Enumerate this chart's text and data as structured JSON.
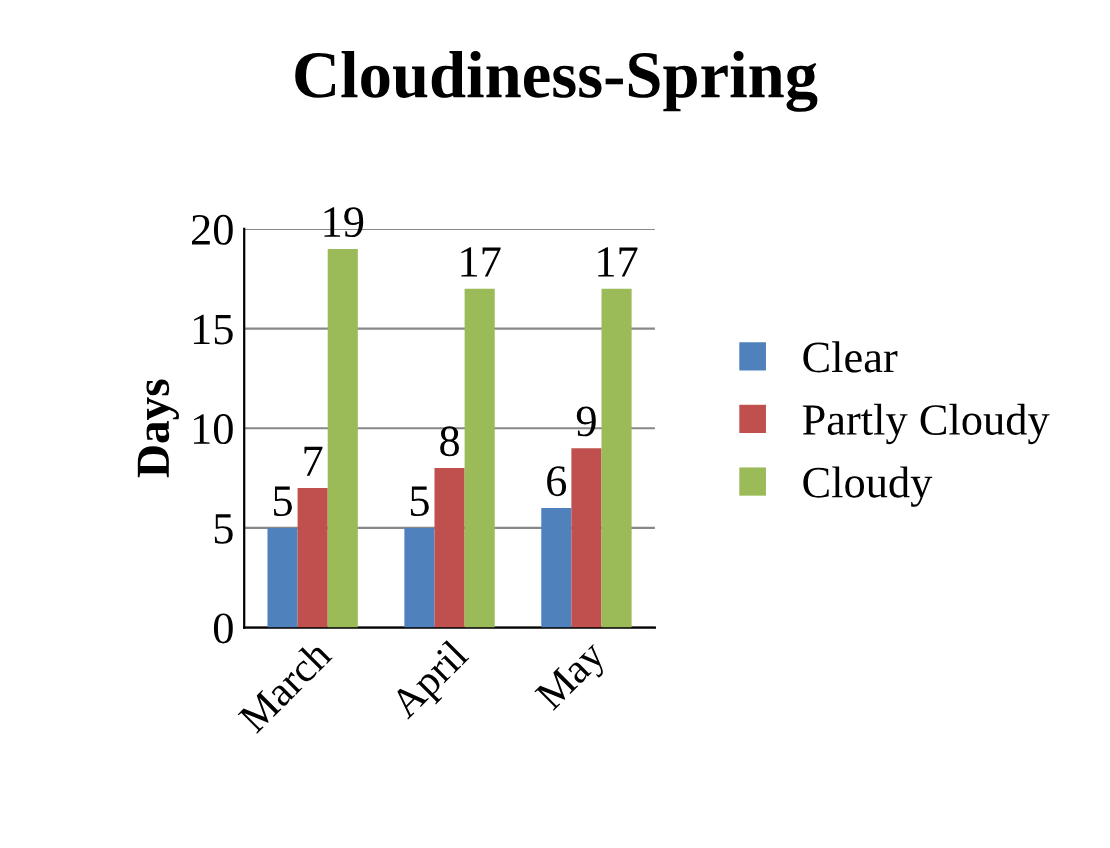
{
  "chart_data": {
    "type": "bar",
    "title": "Cloudiness-Spring",
    "ylabel": "Days",
    "categories": [
      "March",
      "April",
      "May"
    ],
    "series": [
      {
        "name": "Clear",
        "color": "#4f81bd",
        "values": [
          5,
          5,
          6
        ]
      },
      {
        "name": "Partly Cloudy",
        "color": "#c0504d",
        "values": [
          7,
          8,
          9
        ]
      },
      {
        "name": "Cloudy",
        "color": "#9bbb59",
        "values": [
          19,
          17,
          17
        ]
      }
    ],
    "ylim": [
      0,
      20
    ],
    "yticks": [
      0,
      5,
      10,
      15,
      20
    ],
    "grid": "y",
    "legend": "right",
    "data_labels": true
  }
}
